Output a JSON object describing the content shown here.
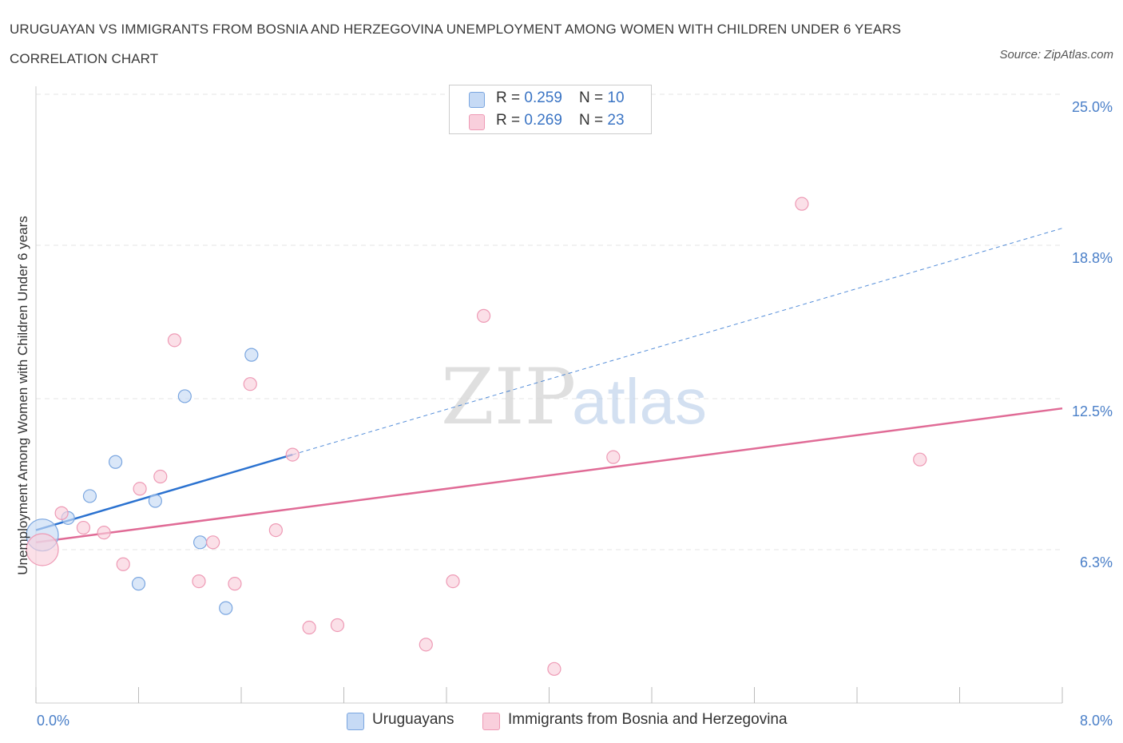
{
  "header": {
    "title": "URUGUAYAN VS IMMIGRANTS FROM BOSNIA AND HERZEGOVINA UNEMPLOYMENT AMONG WOMEN WITH CHILDREN UNDER 6 YEARS CORRELATION CHART",
    "source": "Source: ZipAtlas.com"
  },
  "watermark": {
    "zip": "ZIP",
    "atlas": "atlas"
  },
  "legend": {
    "rows": [
      {
        "r_label": "R = ",
        "r_value": "0.259",
        "n_label": "N = ",
        "n_value": "10"
      },
      {
        "r_label": "R = ",
        "r_value": "0.269",
        "n_label": "N = ",
        "n_value": "23"
      }
    ]
  },
  "colors": {
    "uruguayans_fill": "#c6daf5",
    "uruguayans_stroke": "#7aa6e0",
    "uruguayans_line": "#2b72d0",
    "bosnia_fill": "#f9cfdc",
    "bosnia_stroke": "#ee9ab5",
    "bosnia_line": "#e06b96",
    "grid": "#e4e4e4",
    "axis_text": "#4a7fc8"
  },
  "chart_data": {
    "type": "scatter",
    "title": "URUGUAYAN VS IMMIGRANTS FROM BOSNIA AND HERZEGOVINA UNEMPLOYMENT AMONG WOMEN WITH CHILDREN UNDER 6 YEARS CORRELATION CHART",
    "xlabel": "",
    "ylabel": "Unemployment Among Women with Children Under 6 years",
    "xlim": [
      0,
      8.0
    ],
    "ylim": [
      0,
      25.0
    ],
    "x_tick_labels": [
      "0.0%",
      "8.0%"
    ],
    "y_tick_labels": [
      "6.3%",
      "12.5%",
      "18.8%",
      "25.0%"
    ],
    "y_ticks": [
      6.3,
      12.5,
      18.8,
      25.0
    ],
    "grid": true,
    "legend_position": "bottom",
    "series": [
      {
        "name": "Uruguayans",
        "r": 0.259,
        "n": 10,
        "points": [
          {
            "x": 0.05,
            "y": 6.9,
            "size": "large"
          },
          {
            "x": 0.25,
            "y": 7.6
          },
          {
            "x": 0.42,
            "y": 8.5
          },
          {
            "x": 0.62,
            "y": 9.9
          },
          {
            "x": 0.8,
            "y": 4.9
          },
          {
            "x": 0.93,
            "y": 8.3
          },
          {
            "x": 1.16,
            "y": 12.6
          },
          {
            "x": 1.28,
            "y": 6.6
          },
          {
            "x": 1.48,
            "y": 3.9
          },
          {
            "x": 1.68,
            "y": 14.3
          }
        ],
        "trend": {
          "x0": 0.0,
          "y0": 7.1,
          "x1": 2.0,
          "y1": 10.2,
          "x_dash_end": 8.0,
          "y_dash_end": 19.5
        }
      },
      {
        "name": "Immigrants from Bosnia and Herzegovina",
        "r": 0.269,
        "n": 23,
        "points": [
          {
            "x": 0.05,
            "y": 6.3,
            "size": "large"
          },
          {
            "x": 0.2,
            "y": 7.8
          },
          {
            "x": 0.37,
            "y": 7.2
          },
          {
            "x": 0.53,
            "y": 7.0
          },
          {
            "x": 0.68,
            "y": 5.7
          },
          {
            "x": 0.81,
            "y": 8.8
          },
          {
            "x": 0.97,
            "y": 9.3
          },
          {
            "x": 1.08,
            "y": 14.9
          },
          {
            "x": 1.27,
            "y": 5.0
          },
          {
            "x": 1.38,
            "y": 6.6
          },
          {
            "x": 1.55,
            "y": 4.9
          },
          {
            "x": 1.67,
            "y": 13.1
          },
          {
            "x": 1.87,
            "y": 7.1
          },
          {
            "x": 2.0,
            "y": 10.2
          },
          {
            "x": 2.13,
            "y": 3.1
          },
          {
            "x": 2.35,
            "y": 3.2
          },
          {
            "x": 3.04,
            "y": 2.4
          },
          {
            "x": 3.25,
            "y": 5.0
          },
          {
            "x": 3.49,
            "y": 15.9
          },
          {
            "x": 4.04,
            "y": 1.4
          },
          {
            "x": 4.5,
            "y": 10.1
          },
          {
            "x": 5.97,
            "y": 20.5
          },
          {
            "x": 6.89,
            "y": 10.0
          }
        ],
        "trend": {
          "x0": 0.0,
          "y0": 6.6,
          "x1": 8.0,
          "y1": 12.1
        }
      }
    ]
  }
}
